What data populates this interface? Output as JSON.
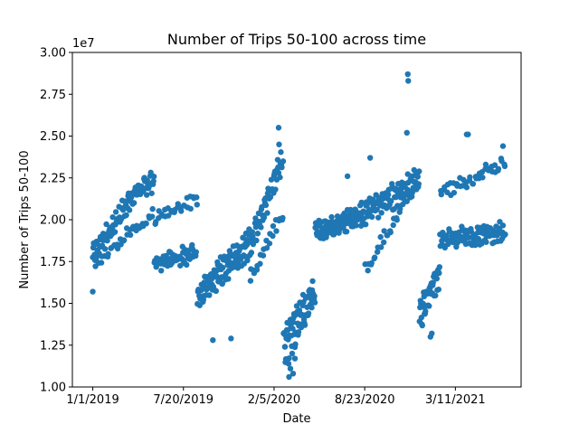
{
  "chart_data": {
    "type": "scatter",
    "title": "Number of Trips 50-100 across time",
    "xlabel": "Date",
    "ylabel": "Number of Trips 50-100",
    "y_offset_label": "1e7",
    "ylim": [
      1.0,
      3.0
    ],
    "y_ticks": [
      1.0,
      1.25,
      1.5,
      1.75,
      2.0,
      2.25,
      2.5,
      2.75,
      3.0
    ],
    "y_tick_labels": [
      "1.00",
      "1.25",
      "1.50",
      "1.75",
      "2.00",
      "2.25",
      "2.50",
      "2.75",
      "3.00"
    ],
    "x_tick_labels": [
      "1/1/2019",
      "7/20/2019",
      "2/5/2020",
      "8/23/2020",
      "3/11/2021"
    ],
    "x_tick_day_index": [
      0,
      200,
      400,
      600,
      800
    ],
    "xlim_day_index": [
      -45,
      945
    ],
    "grid": false,
    "marker_color": "#1f77b4",
    "segments": [
      {
        "start": 0,
        "end": 90,
        "weekday_base": [
          1.76,
          2.12
        ],
        "weekday_amp": 0.06,
        "weekend_level": [
          1.72,
          1.95
        ]
      },
      {
        "start": 91,
        "end": 135,
        "weekday_base": [
          2.12,
          2.2
        ],
        "weekday_amp": 0.07,
        "weekend_level": [
          1.95,
          2.05
        ]
      },
      {
        "start": 136,
        "end": 230,
        "weekday_base": [
          1.72,
          1.78
        ],
        "weekday_amp": 0.05,
        "weekend_level": [
          2.0,
          2.12
        ]
      },
      {
        "start": 231,
        "end": 345,
        "weekday_base": [
          1.52,
          1.85
        ],
        "weekday_amp": 0.08,
        "weekend_level": [
          1.5,
          1.8
        ]
      },
      {
        "start": 346,
        "end": 420,
        "weekday_base": [
          1.8,
          2.32
        ],
        "weekday_amp": 0.09,
        "weekend_level": [
          1.65,
          2.05
        ]
      },
      {
        "start": 421,
        "end": 490,
        "weekday_base": [
          1.25,
          1.52
        ],
        "weekday_amp": 0.1,
        "weekend_level": [
          1.1,
          1.55
        ]
      },
      {
        "start": 491,
        "end": 600,
        "weekday_base": [
          1.9,
          2.0
        ],
        "weekday_amp": 0.06,
        "weekend_level": [
          1.88,
          2.08
        ]
      },
      {
        "start": 601,
        "end": 720,
        "weekday_base": [
          2.0,
          2.18
        ],
        "weekday_amp": 0.1,
        "weekend_level": [
          1.7,
          2.25
        ]
      },
      {
        "start": 721,
        "end": 765,
        "weekday_base": [
          1.42,
          1.62
        ],
        "weekday_amp": 0.1,
        "weekend_level": [
          1.35,
          1.75
        ]
      },
      {
        "start": 766,
        "end": 910,
        "weekday_base": [
          1.85,
          1.9
        ],
        "weekday_amp": 0.06,
        "weekend_level": [
          2.15,
          2.35
        ]
      }
    ],
    "outliers": [
      [
        0,
        1.57
      ],
      [
        305,
        1.29
      ],
      [
        265,
        1.28
      ],
      [
        410,
        2.55
      ],
      [
        411,
        2.45
      ],
      [
        424,
        1.24
      ],
      [
        433,
        1.06
      ],
      [
        436,
        1.11
      ],
      [
        442,
        1.08
      ],
      [
        446,
        1.17
      ],
      [
        695,
        2.87
      ],
      [
        696,
        2.83
      ],
      [
        693,
        2.52
      ],
      [
        745,
        1.3
      ],
      [
        748,
        1.32
      ],
      [
        825,
        2.51
      ],
      [
        828,
        2.51
      ],
      [
        905,
        2.44
      ],
      [
        562,
        2.26
      ],
      [
        612,
        2.37
      ]
    ]
  }
}
